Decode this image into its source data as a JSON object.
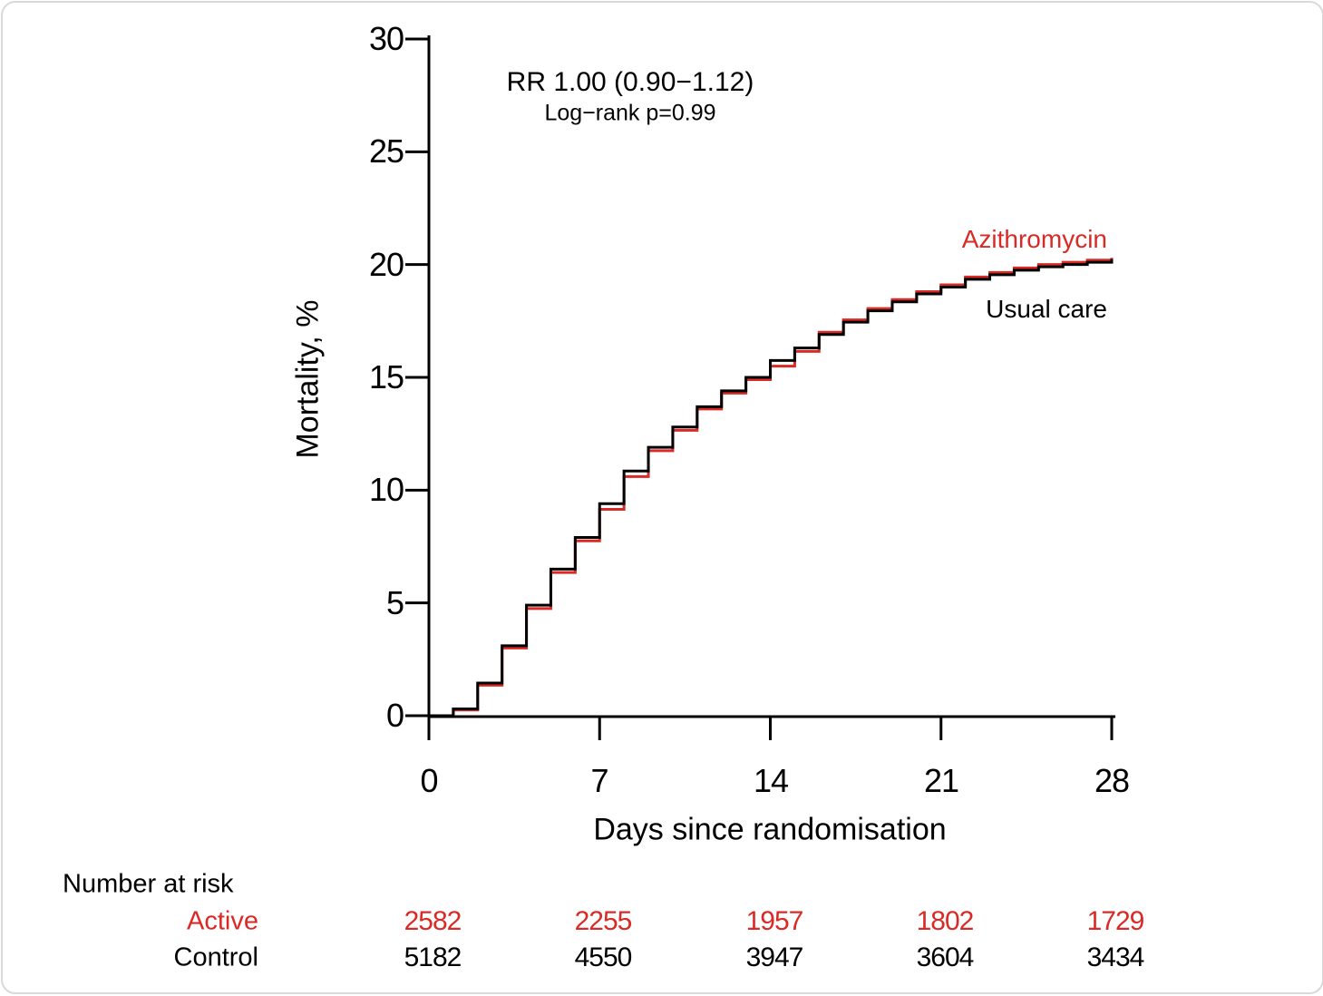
{
  "annotation": {
    "line1": "RR 1.00 (0.90−1.12)",
    "line2": "Log−rank p=0.99"
  },
  "series_labels": {
    "active": "Azithromycin",
    "control": "Usual care"
  },
  "colors": {
    "active": "#d92a26",
    "control": "#000000",
    "axis": "#000000",
    "card_border": "#d9d9d9"
  },
  "risk_table": {
    "title": "Number at risk",
    "columns_days": [
      0,
      7,
      14,
      21,
      28
    ],
    "rows": [
      {
        "label": "Active",
        "color": "#d92a26",
        "values": [
          "2582",
          "2255",
          "1957",
          "1802",
          "1729"
        ]
      },
      {
        "label": "Control",
        "color": "#000000",
        "values": [
          "5182",
          "4550",
          "3947",
          "3604",
          "3434"
        ]
      }
    ]
  },
  "chart_data": {
    "type": "line",
    "subtype": "kaplan-meier-step",
    "title": "RR 1.00 (0.90−1.12)",
    "subtitle": "Log−rank p=0.99",
    "xlabel": "Days since randomisation",
    "ylabel": "Mortality, %",
    "xlim": [
      0,
      28
    ],
    "ylim": [
      0,
      30
    ],
    "xticks": [
      0,
      7,
      14,
      21,
      28
    ],
    "yticks": [
      0,
      5,
      10,
      15,
      20,
      25,
      30
    ],
    "xtick_labels": [
      "0",
      "7",
      "14",
      "21",
      "28"
    ],
    "ytick_labels": [
      "0",
      "5",
      "10",
      "15",
      "20",
      "25",
      "30"
    ],
    "grid": false,
    "legend_position": "end-of-curve-labels",
    "days": [
      1,
      2,
      3,
      4,
      5,
      6,
      7,
      8,
      9,
      10,
      11,
      12,
      13,
      14,
      15,
      16,
      17,
      18,
      19,
      20,
      21,
      22,
      23,
      24,
      25,
      26,
      27,
      28
    ],
    "series": [
      {
        "name": "Azithromycin",
        "color": "#d92a26",
        "start_value": 0,
        "values": [
          0.25,
          1.35,
          3.0,
          4.75,
          6.35,
          7.75,
          9.15,
          10.6,
          11.75,
          12.65,
          13.6,
          14.3,
          14.9,
          15.5,
          16.15,
          17.0,
          17.55,
          18.05,
          18.45,
          18.8,
          19.1,
          19.45,
          19.65,
          19.85,
          20.0,
          20.1,
          20.2,
          20.3
        ]
      },
      {
        "name": "Usual care",
        "color": "#000000",
        "start_value": 0,
        "values": [
          0.3,
          1.45,
          3.1,
          4.9,
          6.5,
          7.9,
          9.4,
          10.85,
          11.9,
          12.8,
          13.7,
          14.4,
          15.0,
          15.75,
          16.3,
          16.9,
          17.45,
          17.95,
          18.35,
          18.7,
          19.0,
          19.35,
          19.55,
          19.75,
          19.9,
          20.0,
          20.1,
          20.25
        ]
      }
    ]
  }
}
